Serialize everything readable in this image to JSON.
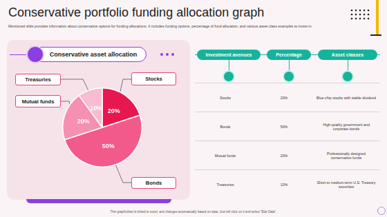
{
  "header": {
    "title": "Conservative portfolio funding allocation graph",
    "subtitle": "Mentioned slide provides information about conservative options for funding allocations. It includes funding options, percentage of fund allocation, and various asset class examples to invest in."
  },
  "chart_data": {
    "type": "pie",
    "title": "Conservative asset allocation",
    "categories": [
      "Stocks",
      "Bonds",
      "Mutual funds",
      "Treasuries"
    ],
    "values": [
      20,
      50,
      20,
      10
    ],
    "value_labels": [
      "20%",
      "50%",
      "20%",
      "10%"
    ],
    "colors": [
      "#e8174f",
      "#f25a8c",
      "#f590b3",
      "#f9bcd1"
    ],
    "data_labels": true
  },
  "table": {
    "header": [
      "Investment avenues",
      "Percentage",
      "Asset classes"
    ],
    "rows": [
      [
        "Stocks",
        "20%",
        "Blue chip stocks with stable dividend"
      ],
      [
        "Bonds",
        "50%",
        "High-quality government and corporate bonds"
      ],
      [
        "Mutual funds",
        "20%",
        "Professionally designed conservative funds"
      ],
      [
        "Treasuries",
        "10%",
        "Short to medium-term U.S. Treasury securities"
      ]
    ]
  },
  "footer": "This graph/chart is linked to excel, and changes automatically based on data. Just left click on it and select \"Edit Data\"."
}
